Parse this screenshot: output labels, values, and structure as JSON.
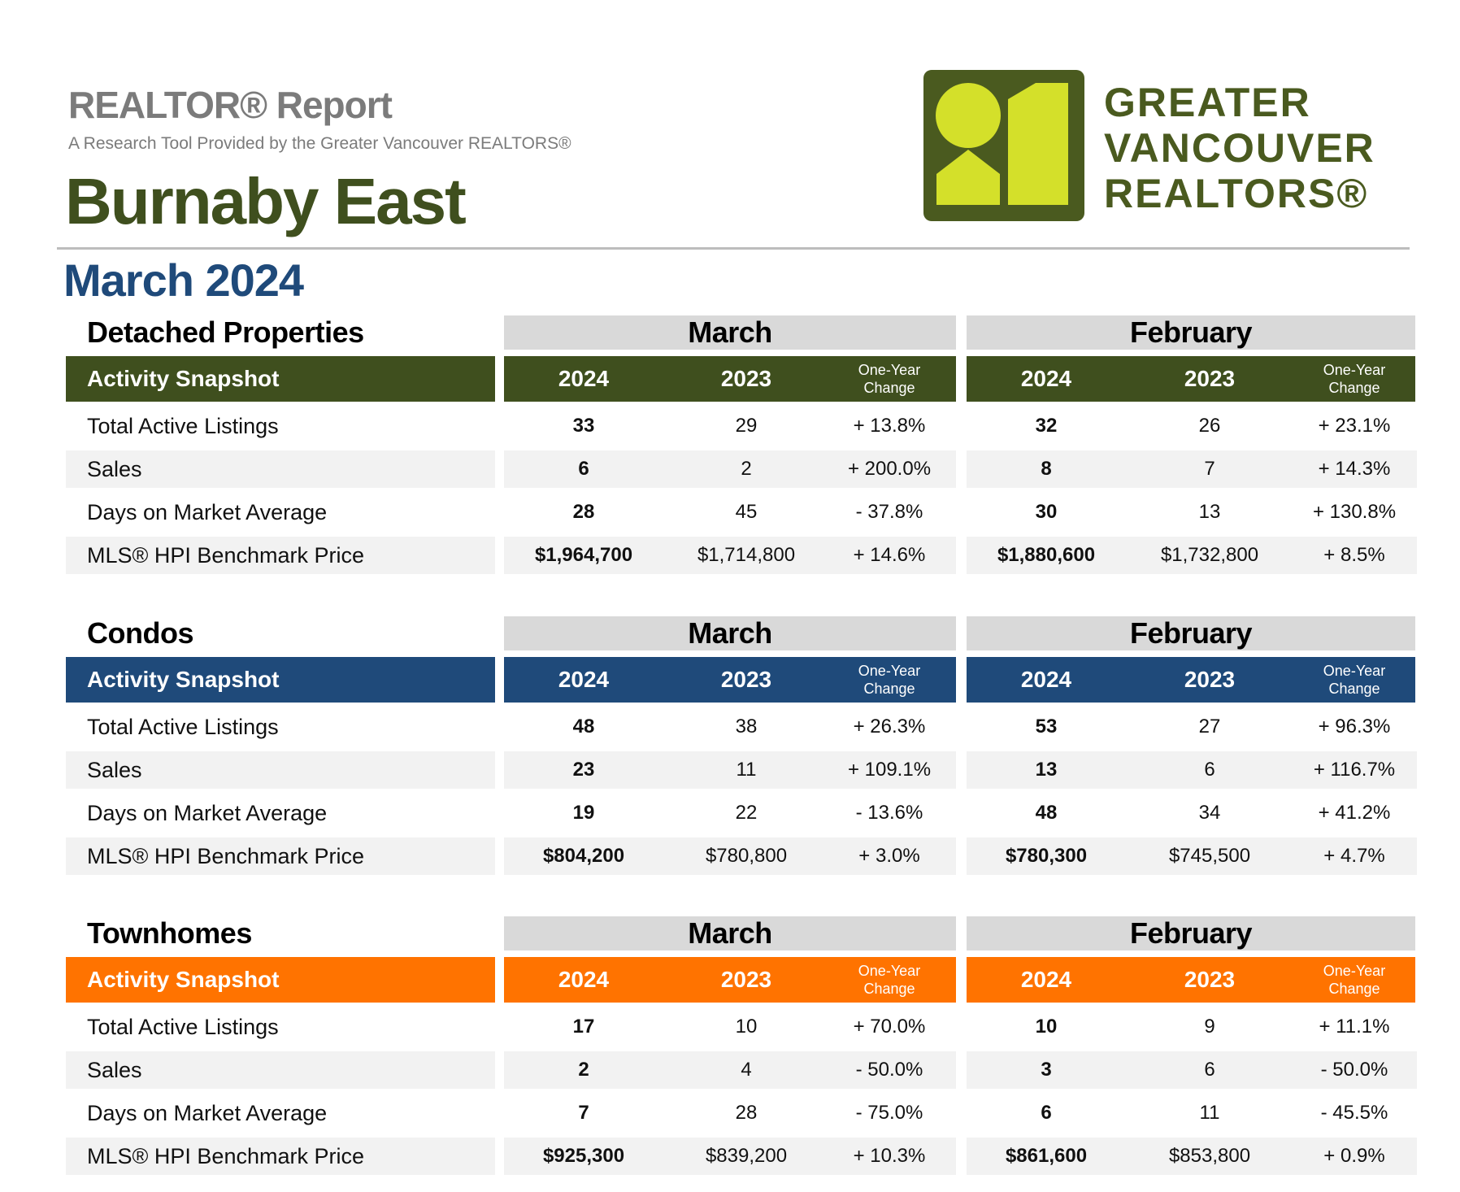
{
  "header": {
    "report_label": "REALTOR® Report",
    "subtitle": "A Research Tool Provided by the Greater Vancouver REALTORS®",
    "area": "Burnaby East",
    "period": "March 2024"
  },
  "logo": {
    "line1": "GREATER",
    "line2": "VANCOUVER",
    "line3": "REALTORS®",
    "colors": {
      "dark": "#4a5a1f",
      "light": "#d4e02a"
    }
  },
  "columns": {
    "snapshot_label": "Activity Snapshot",
    "month_a": "March",
    "month_b": "February",
    "year_current": "2024",
    "year_prior": "2023",
    "change_line1": "One-Year",
    "change_line2": "Change"
  },
  "sections": [
    {
      "title": "Detached Properties",
      "color": "#3f4f1e",
      "rows": [
        {
          "label": "Total Active Listings",
          "mar_2024": "33",
          "mar_2023": "29",
          "mar_change": "+ 13.8%",
          "feb_2024": "32",
          "feb_2023": "26",
          "feb_change": "+ 23.1%"
        },
        {
          "label": "Sales",
          "mar_2024": "6",
          "mar_2023": "2",
          "mar_change": "+ 200.0%",
          "feb_2024": "8",
          "feb_2023": "7",
          "feb_change": "+ 14.3%"
        },
        {
          "label": "Days on Market Average",
          "mar_2024": "28",
          "mar_2023": "45",
          "mar_change": "- 37.8%",
          "feb_2024": "30",
          "feb_2023": "13",
          "feb_change": "+ 130.8%"
        },
        {
          "label": "MLS® HPI Benchmark Price",
          "mar_2024": "$1,964,700",
          "mar_2023": "$1,714,800",
          "mar_change": "+ 14.6%",
          "feb_2024": "$1,880,600",
          "feb_2023": "$1,732,800",
          "feb_change": "+ 8.5%"
        }
      ]
    },
    {
      "title": "Condos",
      "color": "#1f4a7a",
      "rows": [
        {
          "label": "Total Active Listings",
          "mar_2024": "48",
          "mar_2023": "38",
          "mar_change": "+ 26.3%",
          "feb_2024": "53",
          "feb_2023": "27",
          "feb_change": "+ 96.3%"
        },
        {
          "label": "Sales",
          "mar_2024": "23",
          "mar_2023": "11",
          "mar_change": "+ 109.1%",
          "feb_2024": "13",
          "feb_2023": "6",
          "feb_change": "+ 116.7%"
        },
        {
          "label": "Days on Market Average",
          "mar_2024": "19",
          "mar_2023": "22",
          "mar_change": "- 13.6%",
          "feb_2024": "48",
          "feb_2023": "34",
          "feb_change": "+ 41.2%"
        },
        {
          "label": "MLS® HPI Benchmark Price",
          "mar_2024": "$804,200",
          "mar_2023": "$780,800",
          "mar_change": "+ 3.0%",
          "feb_2024": "$780,300",
          "feb_2023": "$745,500",
          "feb_change": "+ 4.7%"
        }
      ]
    },
    {
      "title": "Townhomes",
      "color": "#ff7300",
      "rows": [
        {
          "label": "Total Active Listings",
          "mar_2024": "17",
          "mar_2023": "10",
          "mar_change": "+ 70.0%",
          "feb_2024": "10",
          "feb_2023": "9",
          "feb_change": "+ 11.1%"
        },
        {
          "label": "Sales",
          "mar_2024": "2",
          "mar_2023": "4",
          "mar_change": "- 50.0%",
          "feb_2024": "3",
          "feb_2023": "6",
          "feb_change": "- 50.0%"
        },
        {
          "label": "Days on Market Average",
          "mar_2024": "7",
          "mar_2023": "28",
          "mar_change": "- 75.0%",
          "feb_2024": "6",
          "feb_2023": "11",
          "feb_change": "- 45.5%"
        },
        {
          "label": "MLS® HPI Benchmark Price",
          "mar_2024": "$925,300",
          "mar_2023": "$839,200",
          "mar_change": "+ 10.3%",
          "feb_2024": "$861,600",
          "feb_2023": "$853,800",
          "feb_change": "+ 0.9%"
        }
      ]
    }
  ]
}
